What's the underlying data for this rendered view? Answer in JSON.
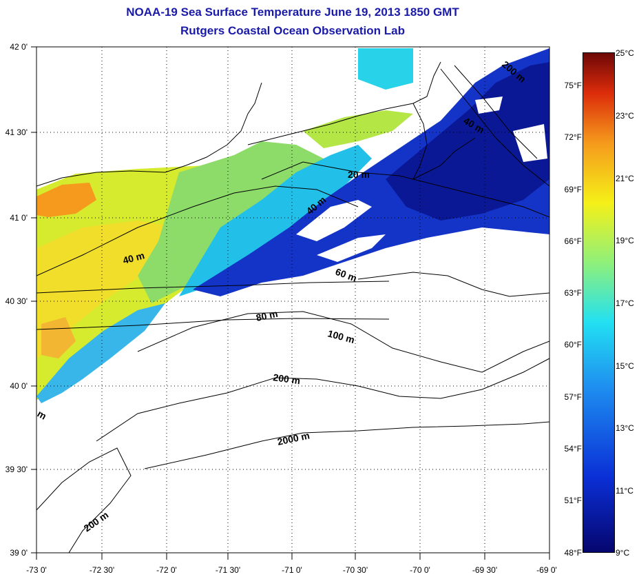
{
  "titles": {
    "main": "NOAA-19 Sea Surface Temperature June 19, 2013 1850 GMT",
    "sub": "Rutgers Coastal Ocean Observation Lab"
  },
  "lat_labels": [
    "42 0'",
    "41 30'",
    "41 0'",
    "40 30'",
    "40 0'",
    "39 30'",
    "39 0'"
  ],
  "lon_labels": [
    "-73 0'",
    "-72 30'",
    "-72 0'",
    "-71 30'",
    "-71 0'",
    "-70 30'",
    "-70 0'",
    "-69 30'",
    "-69 0'"
  ],
  "fahrenheit_labels": [
    "75°F",
    "72°F",
    "69°F",
    "66°F",
    "63°F",
    "60°F",
    "57°F",
    "54°F",
    "51°F",
    "48°F"
  ],
  "celsius_labels": [
    "25°C",
    "23°C",
    "21°C",
    "19°C",
    "17°C",
    "15°C",
    "13°C",
    "11°C",
    "9°C"
  ],
  "contour_labels": [
    "200 m",
    "40 m",
    "20 m",
    "40 m",
    "40 m",
    "60 m",
    "80 m",
    "100 m",
    "200 m",
    "2000 m",
    "200 m",
    "m"
  ],
  "colors": {
    "title": "#1a1aa8",
    "scale_min": "#06066e",
    "scale_max": "#6e0808"
  }
}
